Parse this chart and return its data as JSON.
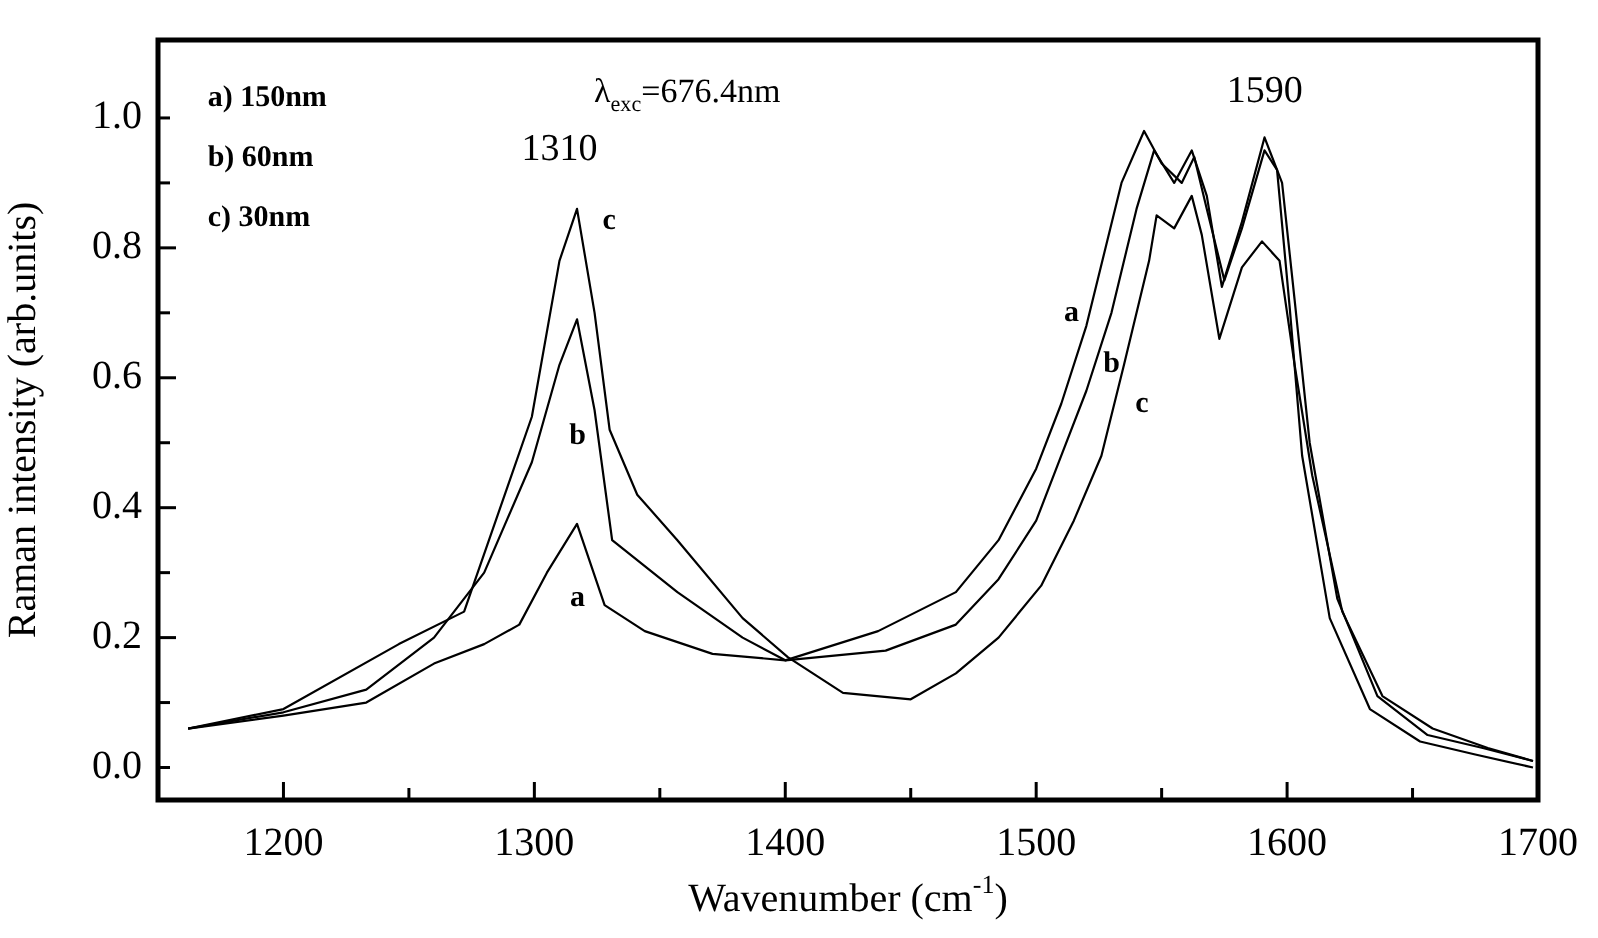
{
  "chart_data": {
    "type": "line",
    "xlabel": "Wavenumber (cm$^{-1}$)",
    "ylabel": "Raman intensity (arb.units)",
    "xlim": [
      1150,
      1700
    ],
    "ylim": [
      -0.05,
      1.12
    ],
    "xticks": [
      {
        "value": 1150,
        "label": null
      },
      1200,
      {
        "value": 1250,
        "label": null
      },
      1300,
      {
        "value": 1350,
        "label": null
      },
      1400,
      {
        "value": 1450,
        "label": null
      },
      1500,
      {
        "value": 1550,
        "label": null
      },
      1600,
      {
        "value": 1650,
        "label": null
      },
      1700
    ],
    "yticks": [
      {
        "value": 0,
        "label": "0.0"
      },
      {
        "value": 0.1,
        "label": null
      },
      0.2,
      {
        "value": 0.3,
        "label": null
      },
      0.4,
      {
        "value": 0.5,
        "label": null
      },
      0.6,
      {
        "value": 0.7,
        "label": null
      },
      0.8,
      {
        "value": 0.9,
        "label": null
      },
      {
        "value": 1,
        "label": "1.0"
      }
    ],
    "grid": false,
    "legend": false,
    "marker": "none",
    "line_style": "solid",
    "series": [
      {
        "color": "#000000",
        "x": [
          1162,
          1200,
          1233,
          1260,
          1280,
          1294,
          1305,
          1317,
          1328,
          1344,
          1371,
          1400,
          1437,
          1468,
          1485,
          1500,
          1510,
          1520,
          1534,
          1543,
          1550,
          1558,
          1563,
          1568,
          1575,
          1582,
          1591,
          1596,
          1601,
          1606,
          1617,
          1633,
          1653,
          1675,
          1698
        ],
        "values": [
          0.06,
          0.08,
          0.1,
          0.16,
          0.19,
          0.22,
          0.3,
          0.375,
          0.25,
          0.21,
          0.175,
          0.165,
          0.21,
          0.27,
          0.35,
          0.46,
          0.56,
          0.68,
          0.9,
          0.98,
          0.93,
          0.9,
          0.94,
          0.86,
          0.75,
          0.83,
          0.95,
          0.92,
          0.71,
          0.48,
          0.23,
          0.09,
          0.04,
          0.02,
          0.0
        ]
      },
      {
        "color": "#000000",
        "x": [
          1162,
          1200,
          1233,
          1260,
          1280,
          1299,
          1310,
          1317,
          1324,
          1331,
          1357,
          1383,
          1400,
          1440,
          1468,
          1485,
          1500,
          1510,
          1520,
          1530,
          1540,
          1547,
          1555,
          1562,
          1568,
          1574,
          1582,
          1591,
          1598,
          1603,
          1609,
          1620,
          1636,
          1656,
          1678,
          1698
        ],
        "values": [
          0.06,
          0.085,
          0.12,
          0.2,
          0.3,
          0.47,
          0.62,
          0.69,
          0.55,
          0.35,
          0.27,
          0.2,
          0.165,
          0.18,
          0.22,
          0.29,
          0.38,
          0.48,
          0.58,
          0.7,
          0.86,
          0.95,
          0.9,
          0.95,
          0.88,
          0.74,
          0.84,
          0.97,
          0.9,
          0.72,
          0.5,
          0.26,
          0.11,
          0.05,
          0.03,
          0.01
        ]
      },
      {
        "color": "#000000",
        "x": [
          1162,
          1200,
          1246,
          1272,
          1299,
          1310,
          1317,
          1324,
          1330,
          1341,
          1357,
          1383,
          1401,
          1423,
          1450,
          1468,
          1485,
          1502,
          1515,
          1526,
          1535,
          1545,
          1548,
          1555,
          1562,
          1566,
          1573,
          1582,
          1590,
          1597,
          1603,
          1610,
          1622,
          1638,
          1658,
          1680,
          1698
        ],
        "values": [
          0.06,
          0.09,
          0.19,
          0.24,
          0.54,
          0.78,
          0.86,
          0.7,
          0.52,
          0.42,
          0.35,
          0.23,
          0.17,
          0.115,
          0.105,
          0.145,
          0.2,
          0.28,
          0.38,
          0.48,
          0.62,
          0.78,
          0.85,
          0.83,
          0.88,
          0.82,
          0.66,
          0.77,
          0.81,
          0.78,
          0.62,
          0.45,
          0.24,
          0.11,
          0.06,
          0.03,
          0.01
        ]
      }
    ],
    "annotations": [
      "a) 150nm",
      "b) 60nm",
      "c) 30nm",
      "λ$_{exc}$=676.4nm",
      "1310",
      "1590",
      "c",
      "b",
      "a",
      "a",
      "b",
      "c"
    ]
  }
}
